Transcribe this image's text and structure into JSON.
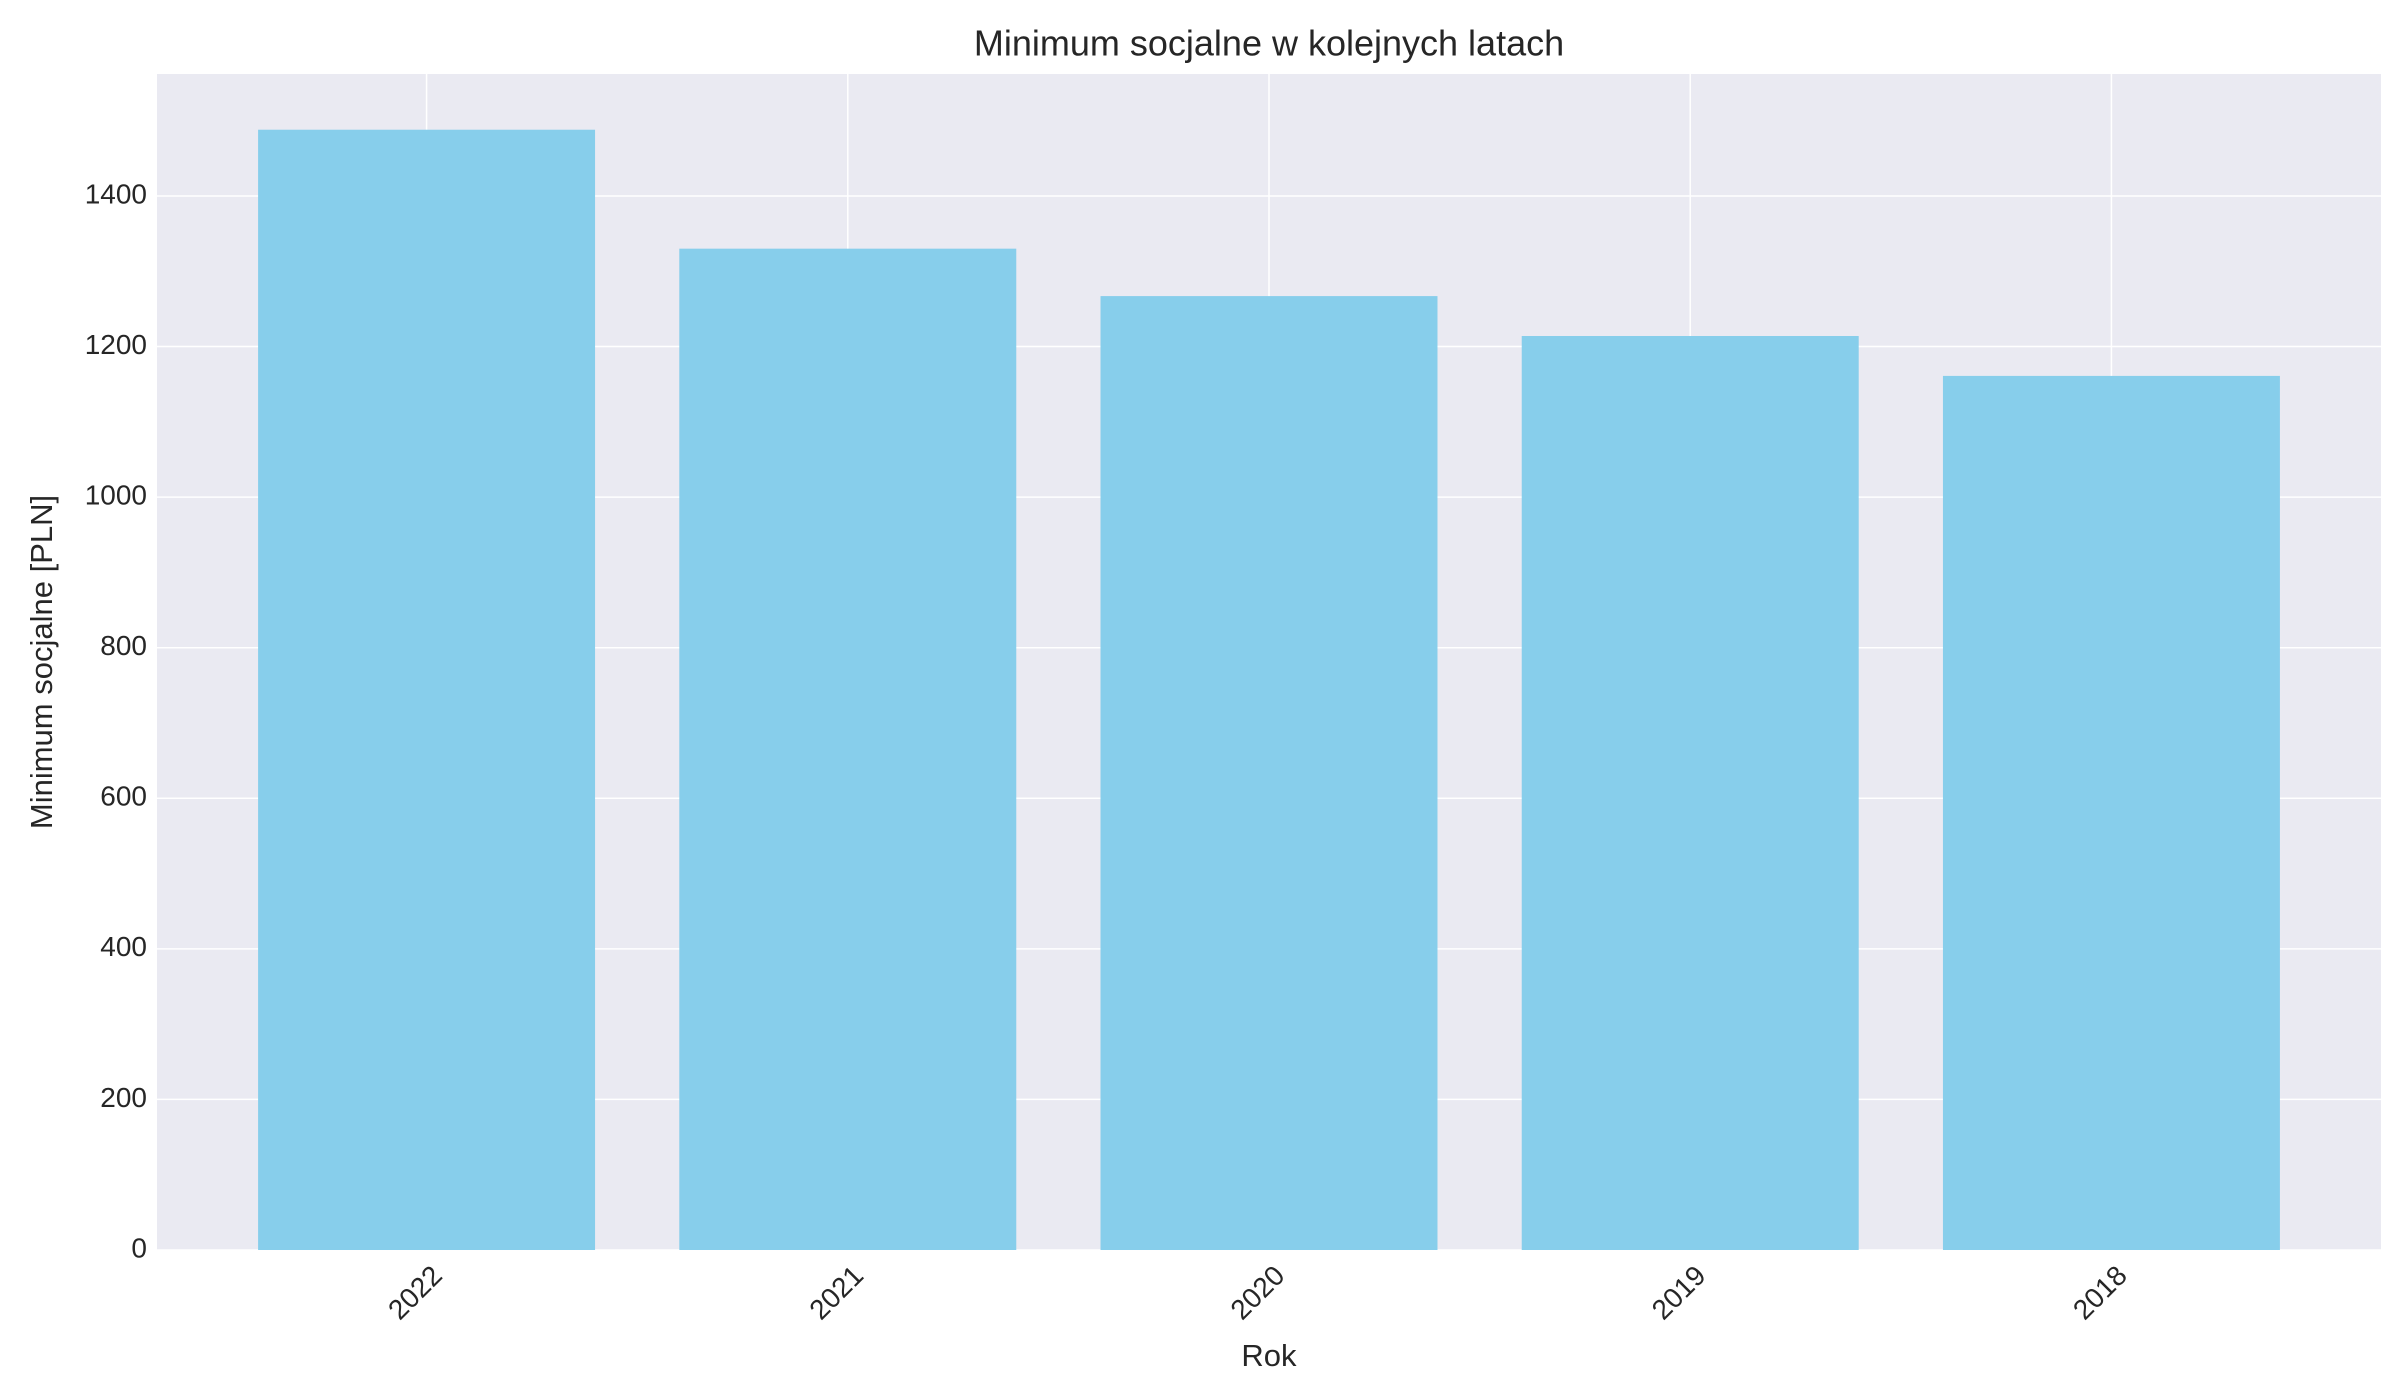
{
  "chart_data": {
    "type": "bar",
    "title": "Minimum socjalne w kolejnych latach",
    "x_label": "Rok",
    "y_label": "Minimum socjalne [PLN]",
    "categories": [
      "2022",
      "2021",
      "2020",
      "2019",
      "2018"
    ],
    "values": [
      1488,
      1330,
      1267,
      1214,
      1161
    ],
    "color": "#87ceeb",
    "ylim": [
      0,
      1562
    ],
    "yticks": [
      0,
      200,
      400,
      600,
      800,
      1000,
      1200,
      1400
    ],
    "grid": true
  }
}
